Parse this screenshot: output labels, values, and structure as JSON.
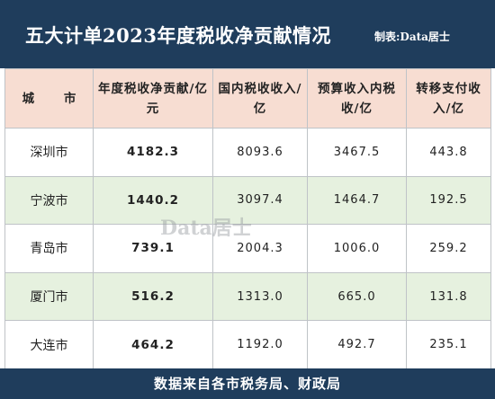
{
  "header": {
    "title": "五大计单2023年度税收净贡献情况",
    "credit": "制表:Data居士"
  },
  "table": {
    "columns": [
      "城  市",
      "年度税收净贡献/亿元",
      "国内税收收入/亿",
      "预算收入内税收/亿",
      "转移支付收入/亿"
    ],
    "rows": [
      {
        "city": "深圳市",
        "net": "4182.3",
        "domestic": "8093.6",
        "budget": "3467.5",
        "transfer": "443.8"
      },
      {
        "city": "宁波市",
        "net": "1440.2",
        "domestic": "3097.4",
        "budget": "1464.7",
        "transfer": "192.5"
      },
      {
        "city": "青岛市",
        "net": "739.1",
        "domestic": "2004.3",
        "budget": "1006.0",
        "transfer": "259.2"
      },
      {
        "city": "厦门市",
        "net": "516.2",
        "domestic": "1313.0",
        "budget": "665.0",
        "transfer": "131.8"
      },
      {
        "city": "大连市",
        "net": "464.2",
        "domestic": "1192.0",
        "budget": "492.7",
        "transfer": "235.1"
      }
    ]
  },
  "watermark": "Data居士",
  "footer": {
    "source": "数据来自各市税务局、财政局"
  }
}
